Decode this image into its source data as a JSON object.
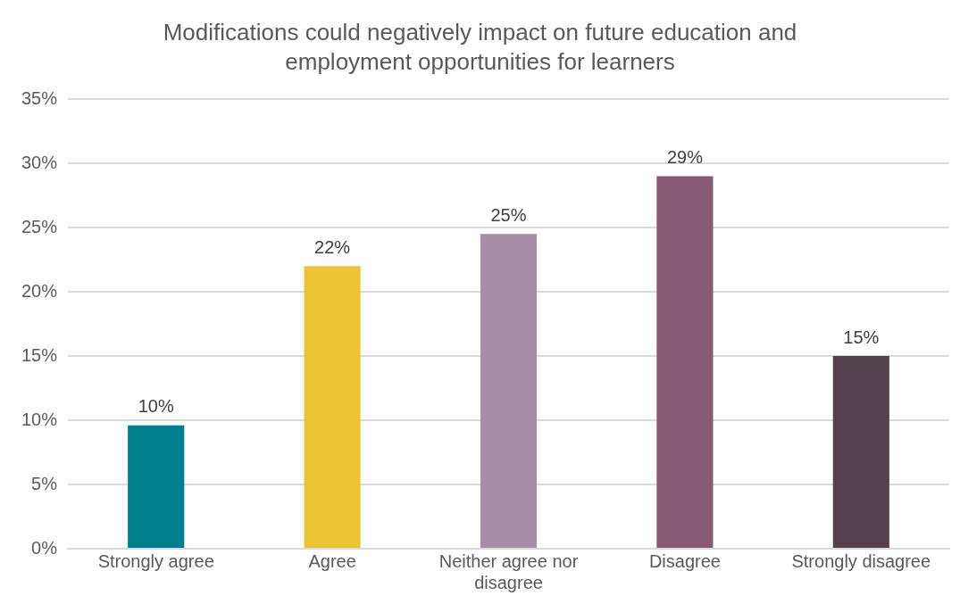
{
  "chart_data": {
    "type": "bar",
    "title": "Modifications could negatively impact on future education and employment opportunities for learners",
    "categories": [
      "Strongly agree",
      "Agree",
      "Neither agree nor disagree",
      "Disagree",
      "Strongly disagree"
    ],
    "values": [
      9.6,
      22,
      24.5,
      29,
      15
    ],
    "value_labels": [
      "10%",
      "22%",
      "25%",
      "29%",
      "15%"
    ],
    "colors": [
      "#00808f",
      "#ebc334",
      "#a78ea5",
      "#865a73",
      "#55414d"
    ],
    "ylim": [
      0,
      35
    ],
    "yticks": [
      {
        "value": 0,
        "label": "0%"
      },
      {
        "value": 5,
        "label": "5%"
      },
      {
        "value": 10,
        "label": "10%"
      },
      {
        "value": 15,
        "label": "15%"
      },
      {
        "value": 20,
        "label": "20%"
      },
      {
        "value": 25,
        "label": "25%"
      },
      {
        "value": 30,
        "label": "30%"
      },
      {
        "value": 35,
        "label": "35%"
      }
    ],
    "grid": "y",
    "legend": false
  }
}
